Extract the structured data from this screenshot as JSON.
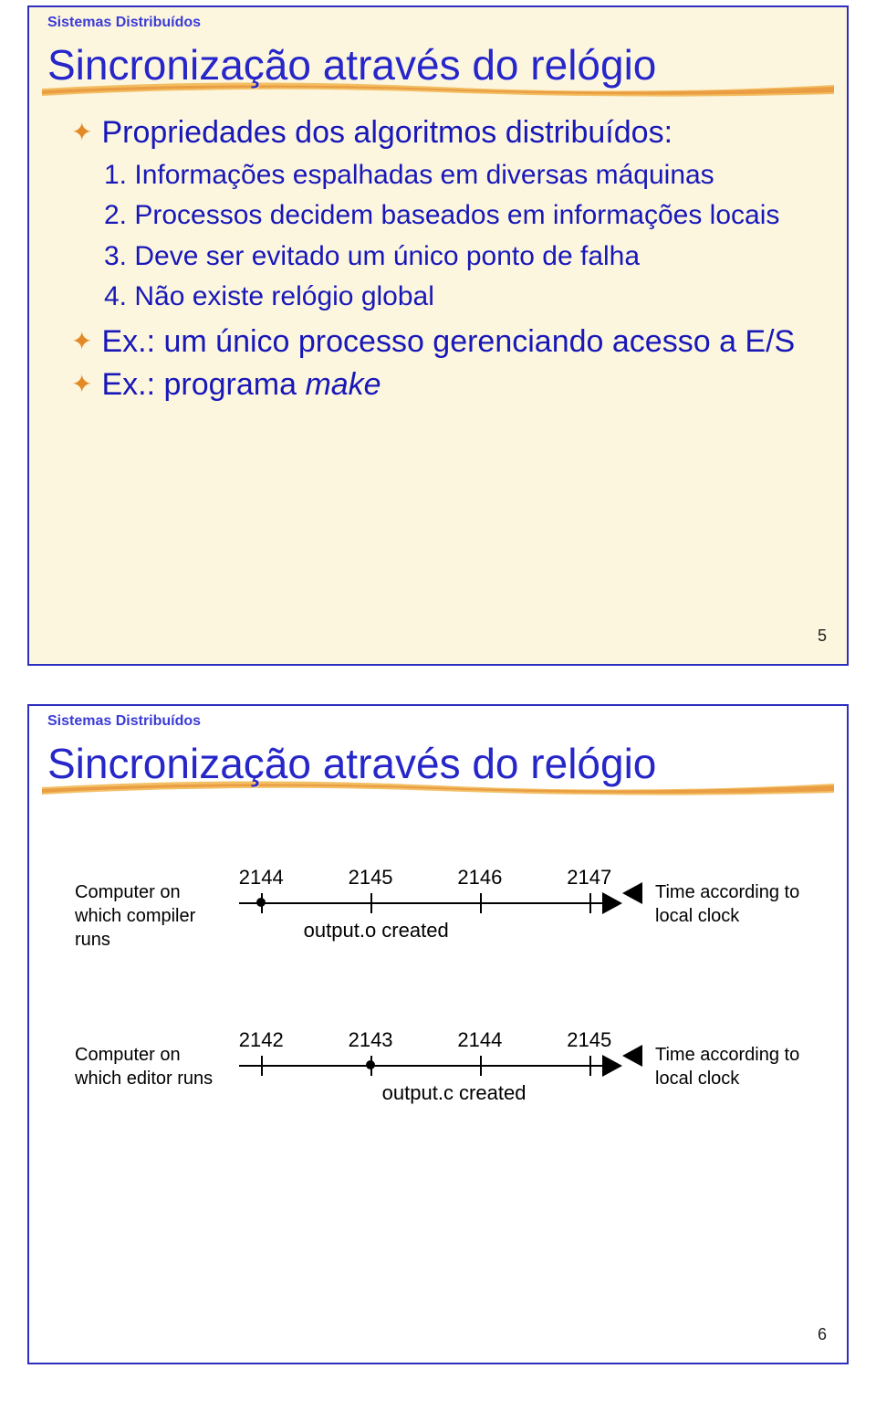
{
  "header": "Sistemas Distribuídos",
  "slide5": {
    "title": "Sincronização através do relógio",
    "intro": "Propriedades dos algoritmos distribuídos:",
    "items": [
      "1. Informações espalhadas em diversas máquinas",
      "2. Processos decidem baseados em informações locais",
      "3. Deve ser evitado um único ponto de falha",
      "4. Não existe relógio global"
    ],
    "ex1": "Ex.: um único processo gerenciando acesso a E/S",
    "ex2_prefix": "Ex.: programa ",
    "ex2_italic": "make",
    "pagenum": "5"
  },
  "slide6": {
    "title": "Sincronização através do relógio",
    "pagenum": "6",
    "timelines": [
      {
        "left": "Computer on which compiler runs",
        "right": "Time according to local clock",
        "ticks": [
          "2144",
          "2145",
          "2146",
          "2147"
        ],
        "dot_pct": 8,
        "created_label": "output.o created",
        "created_pct": 30
      },
      {
        "left": "Computer on which editor runs",
        "right": "Time according to local clock",
        "ticks": [
          "2142",
          "2143",
          "2144",
          "2145"
        ],
        "dot_pct": 36,
        "created_label": "output.c created",
        "created_pct": 50
      }
    ],
    "tick_positions_pct": [
      8,
      36,
      64,
      92
    ]
  },
  "colors": {
    "title_color": "#2626c9",
    "body_color": "#1818b8",
    "accent": "#e38a26",
    "border": "#2e2ec0",
    "slide1_bg": "#fdf6df"
  }
}
